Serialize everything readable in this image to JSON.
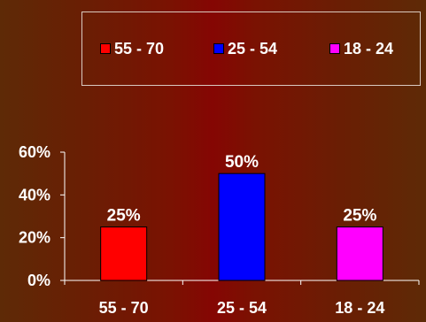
{
  "chart_data": {
    "type": "bar",
    "categories": [
      "55 - 70",
      "25 - 54",
      "18 - 24"
    ],
    "values": [
      25,
      50,
      25
    ],
    "data_labels": [
      "25%",
      "50%",
      "25%"
    ],
    "colors": [
      "#ff0000",
      "#0000ff",
      "#ff00ff"
    ],
    "y_ticks": [
      {
        "value": 0,
        "label": "0%"
      },
      {
        "value": 20,
        "label": "20%"
      },
      {
        "value": 40,
        "label": "40%"
      },
      {
        "value": 60,
        "label": "60%"
      }
    ],
    "ylim": [
      0,
      60
    ],
    "grid": false,
    "legend_position": "top",
    "legend": [
      {
        "label": "55 - 70",
        "color": "#ff0000"
      },
      {
        "label": "25 - 54",
        "color": "#0000ff"
      },
      {
        "label": "18 - 24",
        "color": "#ff00ff"
      }
    ]
  }
}
